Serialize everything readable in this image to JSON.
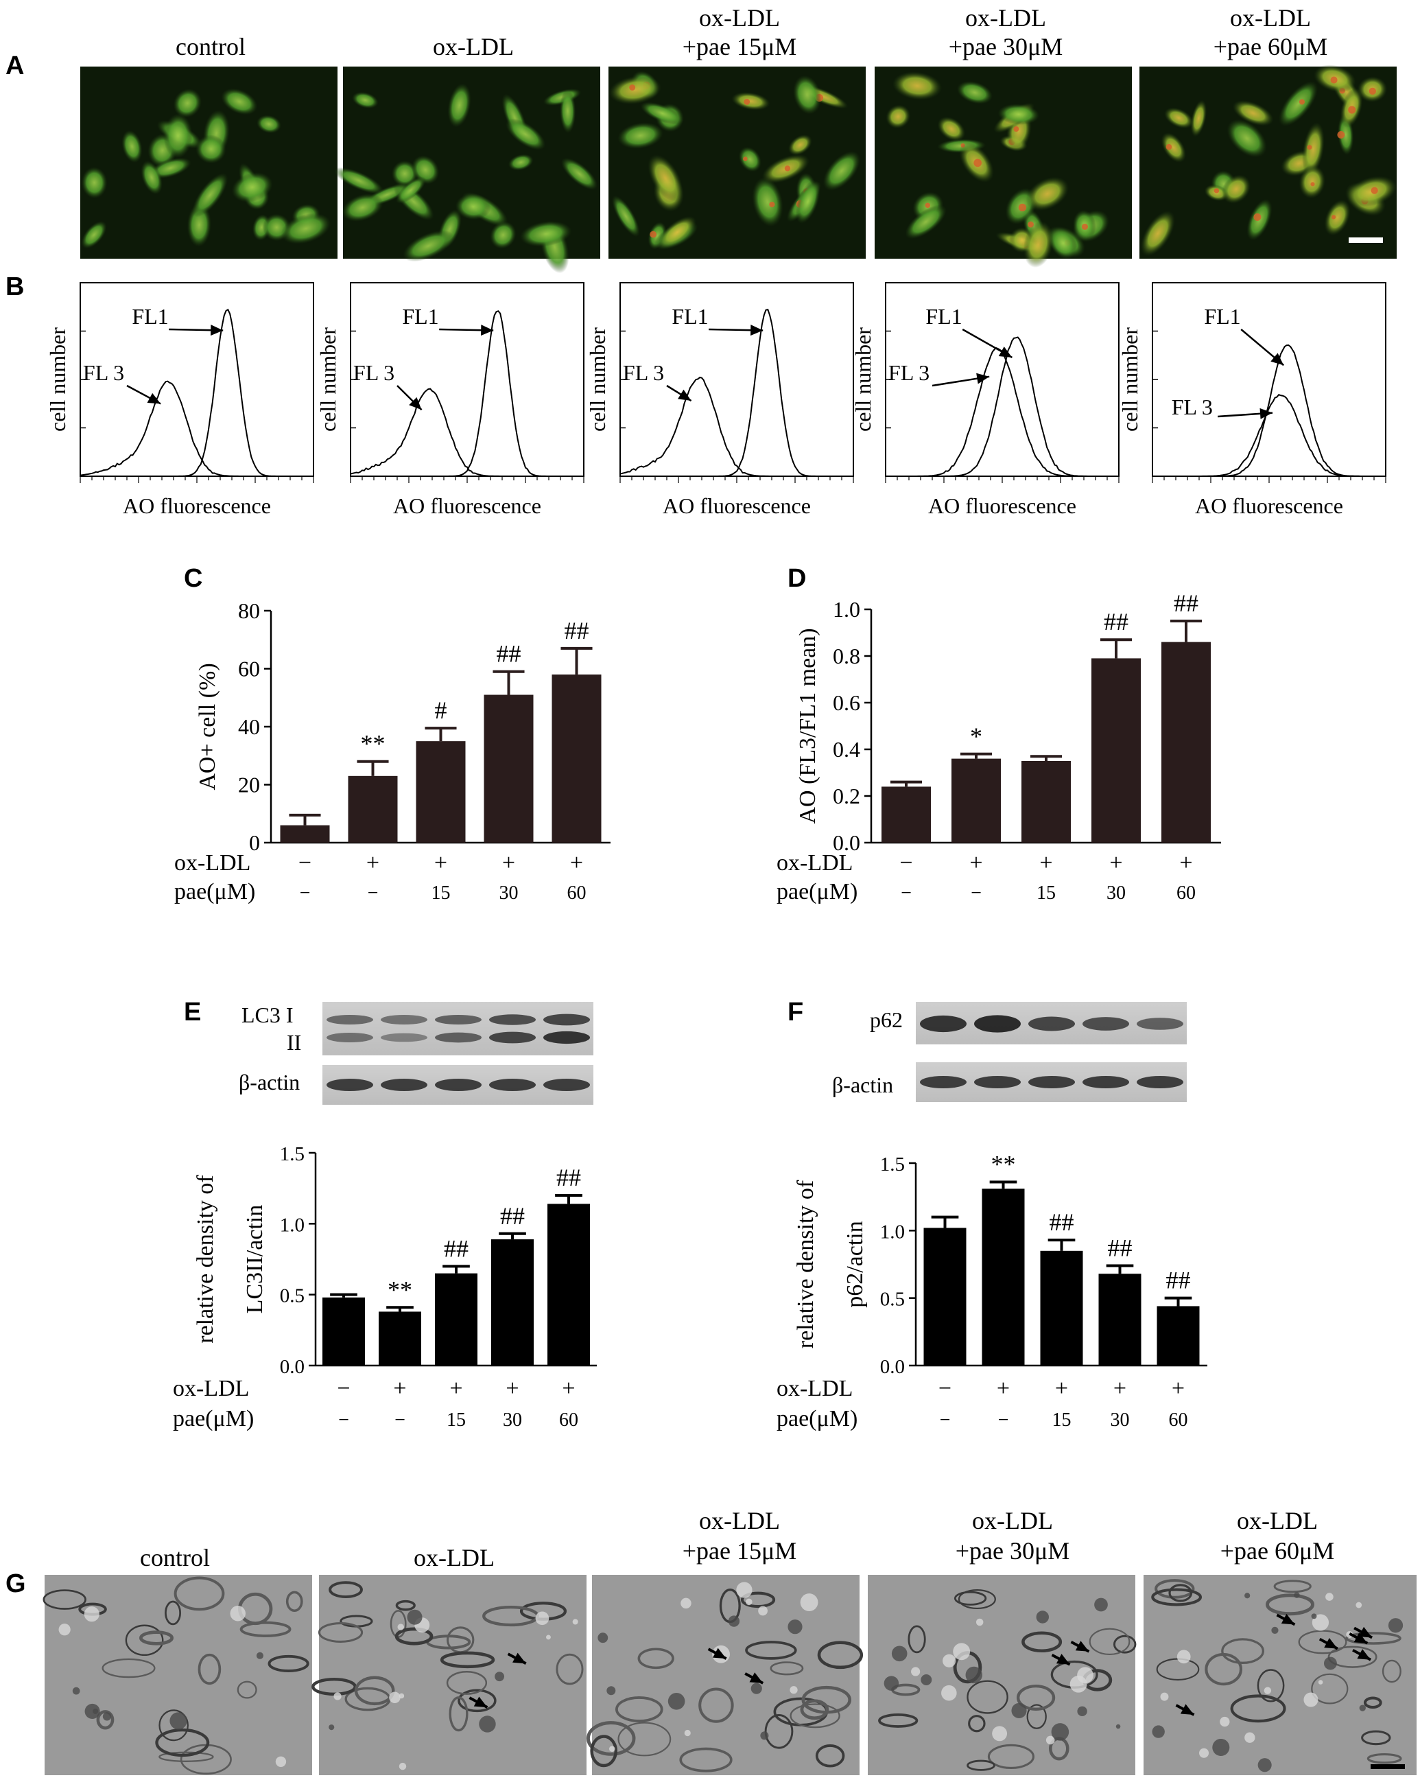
{
  "panel_labels": [
    "A",
    "B",
    "C",
    "D",
    "E",
    "F",
    "G"
  ],
  "conditions": [
    {
      "line1": "control",
      "line2": ""
    },
    {
      "line1": "ox-LDL",
      "line2": ""
    },
    {
      "line1": "ox-LDL",
      "line2": "+pae 15μM"
    },
    {
      "line1": "ox-LDL",
      "line2": "+pae 30μM"
    },
    {
      "line1": "ox-LDL",
      "line2": "+pae 60μM"
    }
  ],
  "flow": {
    "ylabel": "cell number",
    "xlabel": "AO fluorescence",
    "fl1_label": "FL1",
    "fl3_label": "FL 3"
  },
  "treatment_rows": {
    "oxldl_label": "ox-LDL",
    "pae_label": "pae(μM)",
    "oxldl": [
      "−",
      "+",
      "+",
      "+",
      "+"
    ],
    "pae": [
      "−",
      "−",
      "15",
      "30",
      "60"
    ]
  },
  "blots": {
    "E": {
      "band1_label": "LC3 I",
      "band1b_label": "II",
      "band2_label": "β-actin"
    },
    "F": {
      "band1_label": "p62",
      "band2_label": "β-actin"
    }
  },
  "chart_data": [
    {
      "panel": "C",
      "type": "bar",
      "categories": [
        "control",
        "ox-LDL",
        "ox-LDL+pae 15",
        "ox-LDL+pae 30",
        "ox-LDL+pae 60"
      ],
      "values": [
        6,
        23,
        35,
        51,
        58
      ],
      "errors": [
        3.5,
        5,
        4.5,
        8,
        9
      ],
      "significance": [
        "",
        "**",
        "#",
        "##",
        "##"
      ],
      "ylabel": "AO+ cell (%)",
      "ylim": [
        0,
        80
      ],
      "yticks": [
        "0",
        "20",
        "40",
        "60",
        "80"
      ],
      "bar_color": "#2a1c1c"
    },
    {
      "panel": "D",
      "type": "bar",
      "categories": [
        "control",
        "ox-LDL",
        "ox-LDL+pae 15",
        "ox-LDL+pae 30",
        "ox-LDL+pae 60"
      ],
      "values": [
        0.24,
        0.36,
        0.35,
        0.79,
        0.86
      ],
      "errors": [
        0.02,
        0.02,
        0.02,
        0.08,
        0.09
      ],
      "significance": [
        "",
        "*",
        "",
        "##",
        "##"
      ],
      "ylabel": "AO (FL3/FL1 mean)",
      "ylim": [
        0,
        1.0
      ],
      "yticks": [
        "0.0",
        "0.2",
        "0.4",
        "0.6",
        "0.8",
        "1.0"
      ],
      "bar_color": "#2a1c1c"
    },
    {
      "panel": "E",
      "type": "bar",
      "categories": [
        "control",
        "ox-LDL",
        "ox-LDL+pae 15",
        "ox-LDL+pae 30",
        "ox-LDL+pae 60"
      ],
      "values": [
        0.48,
        0.38,
        0.65,
        0.89,
        1.14
      ],
      "errors": [
        0.02,
        0.03,
        0.05,
        0.04,
        0.06
      ],
      "significance": [
        "",
        "**",
        "##",
        "##",
        "##"
      ],
      "ylabel": "relative density of",
      "ylabel2": "LC3II/actin",
      "ylim": [
        0,
        1.5
      ],
      "yticks": [
        "0.0",
        "0.5",
        "1.0",
        "1.5"
      ],
      "bar_color": "#000000"
    },
    {
      "panel": "F",
      "type": "bar",
      "categories": [
        "control",
        "ox-LDL",
        "ox-LDL+pae 15",
        "ox-LDL+pae 30",
        "ox-LDL+pae 60"
      ],
      "values": [
        1.02,
        1.31,
        0.85,
        0.68,
        0.44
      ],
      "errors": [
        0.08,
        0.05,
        0.08,
        0.06,
        0.06
      ],
      "significance": [
        "",
        "**",
        "##",
        "##",
        "##"
      ],
      "ylabel": "relative density of",
      "ylabel2": "p62/actin",
      "ylim": [
        0,
        1.5
      ],
      "yticks": [
        "0.0",
        "0.5",
        "1.0",
        "1.5"
      ],
      "bar_color": "#000000"
    }
  ]
}
